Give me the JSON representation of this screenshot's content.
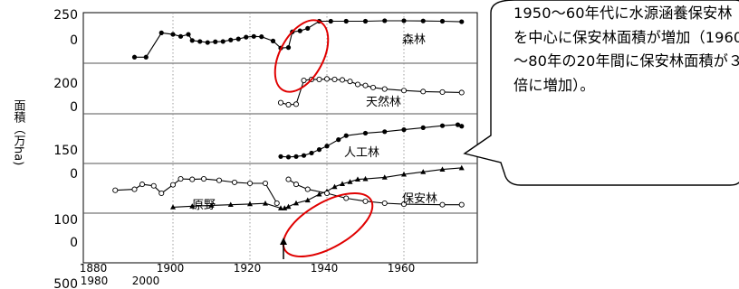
{
  "chart_data": {
    "type": "line",
    "ylabel": "面積（万ha)",
    "y_tick_labels": [
      {
        "lines": [
          "250",
          "0"
        ]
      },
      {
        "lines": [
          "200",
          "0"
        ]
      },
      {
        "lines": [
          "150",
          "0"
        ]
      },
      {
        "lines": [
          "100",
          "0"
        ]
      },
      {
        "lines": [
          "500"
        ]
      }
    ],
    "x_tick_labels": [
      "1880",
      "1900",
      "1920",
      "1940",
      "1960"
    ],
    "x_tick_labels_lower": [
      "1980",
      "2000"
    ],
    "xlim": [
      1880,
      1980
    ],
    "panel_ylim": [
      0,
      500
    ],
    "panels": [
      {
        "label": "森林",
        "marker": "filled-circle",
        "segments": [
          [
            [
              1890,
              60
            ],
            [
              1893,
              60
            ],
            [
              1897,
              300
            ],
            [
              1900,
              285
            ],
            [
              1902,
              265
            ],
            [
              1904,
              285
            ],
            [
              1905,
              225
            ],
            [
              1907,
              215
            ],
            [
              1909,
              205
            ],
            [
              1911,
              212
            ],
            [
              1913,
              215
            ],
            [
              1915,
              230
            ],
            [
              1917,
              240
            ],
            [
              1919,
              258
            ],
            [
              1921,
              265
            ],
            [
              1923,
              262
            ],
            [
              1926,
              220
            ],
            [
              1928,
              150
            ],
            [
              1930,
              155
            ],
            [
              1931,
              310
            ],
            [
              1933,
              320
            ],
            [
              1935,
              345
            ],
            [
              1938,
              415
            ],
            [
              1941,
              415
            ],
            [
              1945,
              415
            ],
            [
              1950,
              415
            ],
            [
              1955,
              420
            ],
            [
              1960,
              420
            ],
            [
              1965,
              418
            ],
            [
              1970,
              415
            ],
            [
              1975,
              410
            ]
          ]
        ]
      },
      {
        "label": "天然林",
        "marker": "open-circle",
        "segments": [
          [
            [
              1928,
              110
            ],
            [
              1930,
              90
            ],
            [
              1932,
              95
            ],
            [
              1934,
              330
            ],
            [
              1936,
              340
            ],
            [
              1938,
              340
            ],
            [
              1940,
              345
            ],
            [
              1942,
              340
            ],
            [
              1944,
              335
            ],
            [
              1946,
              320
            ],
            [
              1948,
              290
            ],
            [
              1950,
              280
            ],
            [
              1952,
              260
            ],
            [
              1955,
              245
            ],
            [
              1960,
              230
            ],
            [
              1965,
              220
            ],
            [
              1970,
              215
            ],
            [
              1975,
              210
            ]
          ]
        ]
      },
      {
        "label": "人工林",
        "marker": "filled-circle",
        "segments": [
          [
            [
              1928,
              70
            ],
            [
              1930,
              65
            ],
            [
              1932,
              70
            ],
            [
              1934,
              80
            ],
            [
              1936,
              105
            ],
            [
              1938,
              140
            ],
            [
              1940,
              175
            ],
            [
              1943,
              240
            ],
            [
              1945,
              280
            ],
            [
              1950,
              305
            ],
            [
              1955,
              320
            ],
            [
              1960,
              340
            ],
            [
              1965,
              360
            ],
            [
              1970,
              380
            ],
            [
              1974,
              390
            ],
            [
              1975,
              375
            ]
          ]
        ]
      },
      {
        "label": "保安林",
        "marker": "filled-triangle",
        "segments": [
          [
            [
              1900,
              60
            ],
            [
              1905,
              70
            ],
            [
              1910,
              78
            ],
            [
              1915,
              85
            ],
            [
              1920,
              92
            ],
            [
              1924,
              98
            ],
            [
              1928,
              50
            ]
          ],
          [
            [
              1929,
              50
            ],
            [
              1930,
              65
            ],
            [
              1932,
              100
            ],
            [
              1935,
              130
            ],
            [
              1938,
              190
            ],
            [
              1940,
              220
            ],
            [
              1942,
              265
            ],
            [
              1944,
              295
            ],
            [
              1946,
              315
            ],
            [
              1948,
              340
            ],
            [
              1950,
              345
            ],
            [
              1955,
              360
            ],
            [
              1960,
              390
            ],
            [
              1965,
              415
            ],
            [
              1970,
              440
            ],
            [
              1975,
              455
            ]
          ]
        ]
      },
      {
        "label": "原野",
        "marker": "open-circle",
        "segments": [
          [
            [
              1885,
              230
            ],
            [
              1890,
              240
            ],
            [
              1892,
              290
            ],
            [
              1895,
              275
            ],
            [
              1897,
              200
            ],
            [
              1900,
              285
            ],
            [
              1902,
              345
            ],
            [
              1905,
              340
            ],
            [
              1908,
              345
            ],
            [
              1912,
              330
            ],
            [
              1916,
              310
            ],
            [
              1920,
              300
            ],
            [
              1924,
              300
            ],
            [
              1927,
              100
            ]
          ],
          [
            [
              1930,
              340
            ],
            [
              1932,
              290
            ],
            [
              1935,
              240
            ],
            [
              1940,
              200
            ],
            [
              1945,
              150
            ],
            [
              1950,
              120
            ],
            [
              1955,
              100
            ],
            [
              1960,
              90
            ],
            [
              1970,
              85
            ],
            [
              1975,
              85
            ]
          ]
        ]
      }
    ],
    "callout": "1950～60年代に水源涵養保安林を中心に保安林面積が増加（1960～80年の20年間に保安林面積が３倍に増加）。"
  }
}
